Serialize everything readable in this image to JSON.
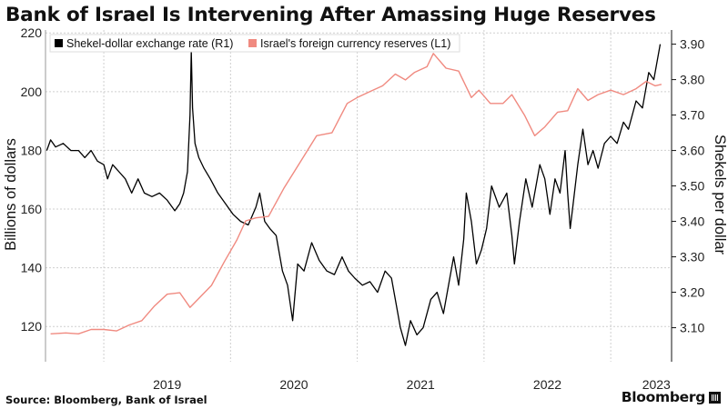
{
  "title": "Bank of Israel Is Intervening After Amassing Huge Reserves",
  "source": "Source: Bloomberg, Bank of Israel",
  "brand": "Bloomberg",
  "colors": {
    "fx_line": "#000000",
    "reserves_line": "#f08a80",
    "grid": "#cfcfcf"
  },
  "chart_data": {
    "type": "line",
    "title": "Bank of Israel Is Intervening After Amassing Huge Reserves",
    "x_ticks": [
      "2019",
      "2020",
      "2021",
      "2022",
      "2023"
    ],
    "x_range": [
      2018.54,
      2023.48
    ],
    "left_axis": {
      "label": "Billions of dollars",
      "ticks": [
        "220",
        "200",
        "180",
        "160",
        "140",
        "120"
      ],
      "range": [
        108,
        221
      ]
    },
    "right_axis": {
      "label": "Shekels per dollar",
      "ticks": [
        "3.90",
        "3.80",
        "3.70",
        "3.60",
        "3.50",
        "3.40",
        "3.30",
        "3.20",
        "3.10"
      ],
      "range": [
        3.004,
        3.94
      ]
    },
    "legend": [
      "Shekel-dollar exchange rate (R1)",
      "Israel's foreign currency reserves (L1)"
    ],
    "series": [
      {
        "name": "Shekel-dollar exchange rate (R1)",
        "axis": "right",
        "points": [
          [
            2018.55,
            3.6
          ],
          [
            2018.58,
            3.63
          ],
          [
            2018.62,
            3.61
          ],
          [
            2018.68,
            3.62
          ],
          [
            2018.74,
            3.6
          ],
          [
            2018.8,
            3.6
          ],
          [
            2018.85,
            3.58
          ],
          [
            2018.9,
            3.6
          ],
          [
            2018.95,
            3.57
          ],
          [
            2019.0,
            3.56
          ],
          [
            2019.03,
            3.52
          ],
          [
            2019.07,
            3.56
          ],
          [
            2019.12,
            3.54
          ],
          [
            2019.17,
            3.52
          ],
          [
            2019.22,
            3.48
          ],
          [
            2019.27,
            3.52
          ],
          [
            2019.32,
            3.48
          ],
          [
            2019.38,
            3.47
          ],
          [
            2019.44,
            3.48
          ],
          [
            2019.5,
            3.46
          ],
          [
            2019.56,
            3.43
          ],
          [
            2019.6,
            3.45
          ],
          [
            2019.63,
            3.48
          ],
          [
            2019.66,
            3.54
          ],
          [
            2019.68,
            3.7
          ],
          [
            2019.69,
            3.88
          ],
          [
            2019.7,
            3.72
          ],
          [
            2019.72,
            3.62
          ],
          [
            2019.75,
            3.58
          ],
          [
            2019.79,
            3.55
          ],
          [
            2019.84,
            3.52
          ],
          [
            2019.9,
            3.48
          ],
          [
            2019.96,
            3.45
          ],
          [
            2020.02,
            3.42
          ],
          [
            2020.08,
            3.4
          ],
          [
            2020.14,
            3.39
          ],
          [
            2020.2,
            3.44
          ],
          [
            2020.23,
            3.48
          ],
          [
            2020.27,
            3.4
          ],
          [
            2020.31,
            3.38
          ],
          [
            2020.36,
            3.36
          ],
          [
            2020.41,
            3.26
          ],
          [
            2020.45,
            3.22
          ],
          [
            2020.49,
            3.12
          ],
          [
            2020.53,
            3.28
          ],
          [
            2020.58,
            3.26
          ],
          [
            2020.64,
            3.34
          ],
          [
            2020.7,
            3.29
          ],
          [
            2020.76,
            3.26
          ],
          [
            2020.82,
            3.25
          ],
          [
            2020.88,
            3.3
          ],
          [
            2020.93,
            3.26
          ],
          [
            2020.98,
            3.24
          ],
          [
            2021.04,
            3.22
          ],
          [
            2021.1,
            3.23
          ],
          [
            2021.16,
            3.2
          ],
          [
            2021.22,
            3.26
          ],
          [
            2021.27,
            3.24
          ],
          [
            2021.3,
            3.18
          ],
          [
            2021.34,
            3.1
          ],
          [
            2021.38,
            3.05
          ],
          [
            2021.42,
            3.12
          ],
          [
            2021.47,
            3.08
          ],
          [
            2021.52,
            3.1
          ],
          [
            2021.58,
            3.18
          ],
          [
            2021.63,
            3.2
          ],
          [
            2021.68,
            3.14
          ],
          [
            2021.72,
            3.22
          ],
          [
            2021.76,
            3.3
          ],
          [
            2021.8,
            3.22
          ],
          [
            2021.84,
            3.35
          ],
          [
            2021.86,
            3.48
          ],
          [
            2021.9,
            3.4
          ],
          [
            2021.94,
            3.28
          ],
          [
            2021.98,
            3.32
          ],
          [
            2022.02,
            3.38
          ],
          [
            2022.06,
            3.5
          ],
          [
            2022.12,
            3.44
          ],
          [
            2022.18,
            3.48
          ],
          [
            2022.22,
            3.36
          ],
          [
            2022.24,
            3.28
          ],
          [
            2022.28,
            3.4
          ],
          [
            2022.33,
            3.52
          ],
          [
            2022.38,
            3.44
          ],
          [
            2022.44,
            3.56
          ],
          [
            2022.48,
            3.52
          ],
          [
            2022.52,
            3.42
          ],
          [
            2022.56,
            3.52
          ],
          [
            2022.6,
            3.48
          ],
          [
            2022.64,
            3.6
          ],
          [
            2022.66,
            3.48
          ],
          [
            2022.68,
            3.38
          ],
          [
            2022.7,
            3.44
          ],
          [
            2022.74,
            3.56
          ],
          [
            2022.78,
            3.66
          ],
          [
            2022.82,
            3.56
          ],
          [
            2022.86,
            3.6
          ],
          [
            2022.9,
            3.55
          ],
          [
            2022.95,
            3.62
          ],
          [
            2023.0,
            3.64
          ],
          [
            2023.05,
            3.62
          ],
          [
            2023.1,
            3.68
          ],
          [
            2023.14,
            3.66
          ],
          [
            2023.2,
            3.74
          ],
          [
            2023.25,
            3.72
          ],
          [
            2023.3,
            3.82
          ],
          [
            2023.34,
            3.8
          ],
          [
            2023.36,
            3.84
          ],
          [
            2023.39,
            3.9
          ]
        ]
      },
      {
        "name": "Israel's foreign currency reserves (L1)",
        "axis": "left",
        "points": [
          [
            2018.58,
            117.5
          ],
          [
            2018.7,
            117.8
          ],
          [
            2018.8,
            117.5
          ],
          [
            2018.9,
            119.0
          ],
          [
            2019.0,
            119.0
          ],
          [
            2019.1,
            118.5
          ],
          [
            2019.2,
            120.5
          ],
          [
            2019.3,
            122.0
          ],
          [
            2019.4,
            127.0
          ],
          [
            2019.5,
            131.0
          ],
          [
            2019.6,
            131.5
          ],
          [
            2019.68,
            126.5
          ],
          [
            2019.76,
            130.0
          ],
          [
            2019.85,
            134.0
          ],
          [
            2019.95,
            142.0
          ],
          [
            2020.05,
            149.5
          ],
          [
            2020.12,
            156.0
          ],
          [
            2020.2,
            157.0
          ],
          [
            2020.3,
            157.5
          ],
          [
            2020.42,
            167.0
          ],
          [
            2020.55,
            176.0
          ],
          [
            2020.68,
            185.0
          ],
          [
            2020.8,
            186.0
          ],
          [
            2020.92,
            196.0
          ],
          [
            2021.0,
            198.0
          ],
          [
            2021.1,
            200.0
          ],
          [
            2021.2,
            202.0
          ],
          [
            2021.3,
            206.0
          ],
          [
            2021.38,
            204.0
          ],
          [
            2021.45,
            206.5
          ],
          [
            2021.55,
            208.5
          ],
          [
            2021.6,
            213.0
          ],
          [
            2021.7,
            208.0
          ],
          [
            2021.8,
            207.0
          ],
          [
            2021.9,
            198.0
          ],
          [
            2021.96,
            200.5
          ],
          [
            2022.05,
            196.0
          ],
          [
            2022.15,
            196.0
          ],
          [
            2022.22,
            199.0
          ],
          [
            2022.32,
            192.0
          ],
          [
            2022.4,
            185.0
          ],
          [
            2022.48,
            188.0
          ],
          [
            2022.58,
            193.0
          ],
          [
            2022.66,
            193.5
          ],
          [
            2022.74,
            201.0
          ],
          [
            2022.82,
            197.0
          ],
          [
            2022.9,
            199.0
          ],
          [
            2023.0,
            200.5
          ],
          [
            2023.1,
            199.0
          ],
          [
            2023.2,
            201.0
          ],
          [
            2023.28,
            203.5
          ],
          [
            2023.35,
            202.0
          ],
          [
            2023.4,
            202.5
          ]
        ]
      }
    ]
  }
}
